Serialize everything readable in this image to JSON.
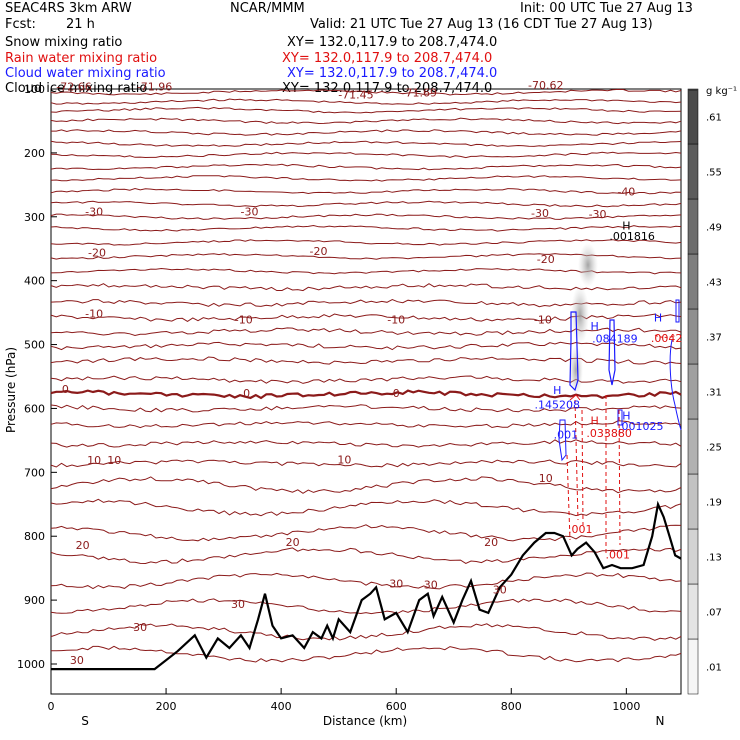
{
  "header": {
    "model": "SEAC4RS   3km ARW",
    "org": "NCAR/MMM",
    "init": "Init: 00 UTC Tue 27 Aug 13",
    "fcst_label": "Fcst:",
    "fcst_value": "21 h",
    "valid": "Valid: 21 UTC Tue 27 Aug 13 (16 CDT Tue 27 Aug 13)",
    "fields": [
      {
        "name": "Snow mixing ratio",
        "xy": "XY= 132.0,117.9 to 208.7,474.0",
        "color": "#000000"
      },
      {
        "name": "Rain water mixing ratio",
        "xy": "XY= 132.0,117.9 to 208.7,474.0",
        "color": "#e01010"
      },
      {
        "name": "Cloud water mixing ratio",
        "xy": "XY= 132.0,117.9 to 208.7,474.0",
        "color": "#1a1aff"
      },
      {
        "name": "Cloud ice mixing ratio",
        "xy": "XY= 132.0,117.9 to 208.7,474.0",
        "color": "#000000"
      }
    ]
  },
  "colorbar": {
    "unit": "g kg⁻¹",
    "ticks": [
      ".01",
      ".07",
      ".13",
      ".19",
      ".25",
      ".31",
      ".37",
      ".43",
      ".49",
      ".55",
      ".61"
    ]
  },
  "chart_data": {
    "type": "line",
    "xlabel": "Distance (km)",
    "ylabel": "Pressure (hPa)",
    "xlim": [
      0,
      1095
    ],
    "ylim": [
      100,
      1050
    ],
    "x_ticks": [
      "0",
      "200",
      "400",
      "600",
      "800",
      "1000"
    ],
    "y_ticks": [
      "100",
      "200",
      "300",
      "400",
      "500",
      "600",
      "700",
      "800",
      "900",
      "1000"
    ],
    "x_ends": {
      "left": "S",
      "right": "N"
    },
    "temperature_contour_color": "#8b1a1a",
    "temperature_labels": [
      {
        "text": "-72.66",
        "x": 40,
        "p": 102
      },
      {
        "text": "-71.96",
        "x": 180,
        "p": 102
      },
      {
        "text": "-71.45",
        "x": 530,
        "p": 115
      },
      {
        "text": "-71.69",
        "x": 640,
        "p": 112
      },
      {
        "text": "-70.62",
        "x": 860,
        "p": 100
      },
      {
        "text": "-40",
        "x": 1000,
        "p": 267
      },
      {
        "text": "-30",
        "x": 75,
        "p": 298
      },
      {
        "text": "-30",
        "x": 345,
        "p": 298
      },
      {
        "text": "-30",
        "x": 850,
        "p": 300
      },
      {
        "text": "-30",
        "x": 950,
        "p": 302
      },
      {
        "text": "-20",
        "x": 80,
        "p": 362
      },
      {
        "text": "-20",
        "x": 465,
        "p": 360
      },
      {
        "text": "-20",
        "x": 860,
        "p": 372
      },
      {
        "text": "-10",
        "x": 75,
        "p": 458
      },
      {
        "text": "-10",
        "x": 335,
        "p": 467
      },
      {
        "text": "-10",
        "x": 600,
        "p": 467
      },
      {
        "text": "-10",
        "x": 855,
        "p": 467
      },
      {
        "text": "0",
        "x": 25,
        "p": 576
      },
      {
        "text": "0",
        "x": 340,
        "p": 582
      },
      {
        "text": "0",
        "x": 600,
        "p": 582
      },
      {
        "text": "10",
        "x": 75,
        "p": 687
      },
      {
        "text": "10",
        "x": 110,
        "p": 687
      },
      {
        "text": "10",
        "x": 510,
        "p": 686
      },
      {
        "text": "10",
        "x": 860,
        "p": 715
      },
      {
        "text": "20",
        "x": 55,
        "p": 820
      },
      {
        "text": "20",
        "x": 420,
        "p": 815
      },
      {
        "text": "20",
        "x": 765,
        "p": 815
      },
      {
        "text": "30",
        "x": 155,
        "p": 948
      },
      {
        "text": "30",
        "x": 325,
        "p": 912
      },
      {
        "text": "30",
        "x": 600,
        "p": 880
      },
      {
        "text": "30",
        "x": 660,
        "p": 882
      },
      {
        "text": "30",
        "x": 780,
        "p": 890
      },
      {
        "text": "30",
        "x": 45,
        "p": 1000
      }
    ],
    "rain_labels": [
      {
        "text": ".001",
        "x": 920,
        "p": 795
      },
      {
        "text": ".001",
        "x": 985,
        "p": 835
      },
      {
        "text": "H",
        "x": 945,
        "p": 625
      },
      {
        "text": ".033880",
        "x": 970,
        "p": 645
      },
      {
        "text": ".0042",
        "x": 1070,
        "p": 496
      }
    ],
    "cloud_water_labels": [
      {
        "text": "H",
        "x": 880,
        "p": 577
      },
      {
        "text": ".145208",
        "x": 880,
        "p": 600
      },
      {
        "text": "H",
        "x": 945,
        "p": 477
      },
      {
        "text": ".084189",
        "x": 980,
        "p": 497
      },
      {
        "text": "H",
        "x": 1055,
        "p": 464
      },
      {
        "text": ".001",
        "x": 895,
        "p": 647
      },
      {
        "text": "H",
        "x": 1000,
        "p": 617
      },
      {
        "text": ".001025",
        "x": 1025,
        "p": 634
      }
    ],
    "cloud_ice_labels": [
      {
        "text": "H",
        "x": 1000,
        "p": 320
      },
      {
        "text": ".001816",
        "x": 1010,
        "p": 336
      }
    ],
    "terrain_pressure": {
      "x": [
        0,
        180,
        220,
        250,
        270,
        290,
        310,
        330,
        345,
        360,
        372,
        385,
        400,
        420,
        440,
        455,
        470,
        480,
        490,
        500,
        520,
        540,
        555,
        565,
        580,
        600,
        620,
        640,
        655,
        665,
        680,
        700,
        715,
        730,
        745,
        760,
        780,
        800,
        820,
        840,
        860,
        875,
        890,
        905,
        915,
        930,
        945,
        960,
        975,
        990,
        1010,
        1030,
        1045,
        1055,
        1065,
        1075,
        1085,
        1095
      ],
      "p": [
        1008,
        1008,
        980,
        955,
        990,
        960,
        975,
        955,
        975,
        930,
        890,
        940,
        960,
        955,
        975,
        950,
        960,
        940,
        960,
        930,
        950,
        900,
        890,
        880,
        930,
        920,
        950,
        900,
        890,
        925,
        895,
        935,
        900,
        870,
        915,
        920,
        880,
        860,
        830,
        810,
        795,
        795,
        800,
        830,
        820,
        810,
        825,
        850,
        845,
        850,
        850,
        845,
        800,
        750,
        770,
        800,
        830,
        835
      ]
    }
  }
}
